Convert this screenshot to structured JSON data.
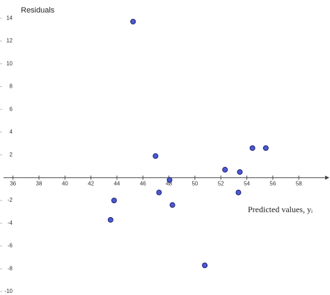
{
  "chart_data": {
    "type": "scatter",
    "y_label": "Residuals",
    "x_label": "Predicted values, yᵢ",
    "x": [
      45.24,
      46.97,
      48.05,
      47.24,
      48.27,
      43.78,
      43.51,
      50.76,
      52.32,
      53.46,
      53.35,
      54.43,
      55.46
    ],
    "values": [
      13.7,
      1.9,
      -0.2,
      -1.3,
      -2.4,
      -2.0,
      -3.7,
      -7.7,
      0.7,
      0.5,
      -1.3,
      2.6,
      2.6
    ],
    "color": "#4c5ad6",
    "xlim": [
      35,
      60.4
    ],
    "ylim": [
      -10.3,
      15.6
    ],
    "xticks": [
      36,
      38,
      40,
      42,
      44,
      46,
      48,
      50,
      52,
      54,
      56,
      58
    ],
    "yticks": [
      14,
      12,
      10,
      8,
      6,
      4,
      2,
      -2,
      -4,
      -6,
      -8,
      -10
    ],
    "grid": false
  }
}
